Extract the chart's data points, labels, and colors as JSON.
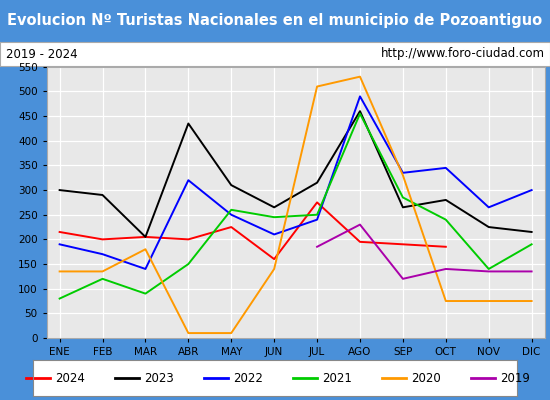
{
  "title": "Evolucion Nº Turistas Nacionales en el municipio de Pozoantiguo",
  "subtitle_left": "2019 - 2024",
  "subtitle_right": "http://www.foro-ciudad.com",
  "months": [
    "ENE",
    "FEB",
    "MAR",
    "ABR",
    "MAY",
    "JUN",
    "JUL",
    "AGO",
    "SEP",
    "OCT",
    "NOV",
    "DIC"
  ],
  "ylim": [
    0,
    550
  ],
  "yticks": [
    0,
    50,
    100,
    150,
    200,
    250,
    300,
    350,
    400,
    450,
    500,
    550
  ],
  "series": {
    "2024": {
      "color": "#ff0000",
      "values": [
        215,
        200,
        205,
        200,
        225,
        160,
        275,
        195,
        190,
        185,
        null,
        null
      ]
    },
    "2023": {
      "color": "#000000",
      "values": [
        300,
        290,
        205,
        435,
        310,
        265,
        315,
        460,
        265,
        280,
        225,
        215
      ]
    },
    "2022": {
      "color": "#0000ff",
      "values": [
        190,
        170,
        140,
        320,
        250,
        210,
        240,
        490,
        335,
        345,
        265,
        300
      ]
    },
    "2021": {
      "color": "#00cc00",
      "values": [
        80,
        120,
        90,
        150,
        260,
        245,
        250,
        455,
        285,
        240,
        140,
        190
      ]
    },
    "2020": {
      "color": "#ff9900",
      "values": [
        135,
        135,
        180,
        10,
        10,
        140,
        510,
        530,
        330,
        75,
        75,
        75
      ]
    },
    "2019": {
      "color": "#aa00aa",
      "values": [
        null,
        null,
        null,
        null,
        null,
        null,
        185,
        230,
        120,
        140,
        135,
        135
      ]
    }
  },
  "legend_order": [
    "2024",
    "2023",
    "2022",
    "2021",
    "2020",
    "2019"
  ],
  "title_bg_color": "#4a90d9",
  "title_text_color": "#ffffff",
  "subtitle_bg_color": "#ffffff",
  "plot_bg_color": "#e8e8e8",
  "grid_color": "#ffffff",
  "border_color": "#888888",
  "fig_bg_color": "#4a90d9"
}
